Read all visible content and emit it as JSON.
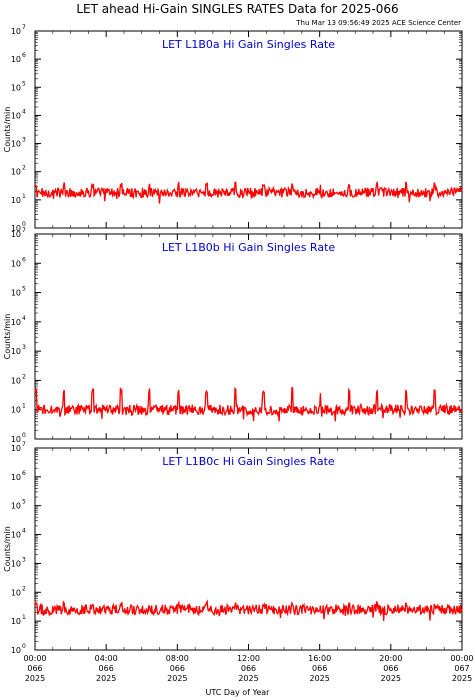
{
  "header": {
    "title": "LET ahead Hi-Gain SINGLES RATES Data for 2025-066",
    "timestamp": "Thu Mar 13 09:56:49 2025 ACE Science Center"
  },
  "chart_data": [
    {
      "type": "line",
      "title": "LET L1B0a Hi Gain Singles Rate",
      "xlabel": "UTC Day of Year",
      "ylabel": "Counts/min",
      "y_scale": "log",
      "ylim": [
        1,
        10000000
      ],
      "xlim": [
        "2025-066 00:00",
        "2025-067 00:00"
      ],
      "series_color": "#ff0000",
      "typical_value": 18,
      "spike_period_hours": 1.6,
      "spike_value": 35
    },
    {
      "type": "line",
      "title": "LET L1B0b Hi Gain Singles Rate",
      "xlabel": "UTC Day of Year",
      "ylabel": "Counts/min",
      "y_scale": "log",
      "ylim": [
        1,
        10000000
      ],
      "xlim": [
        "2025-066 00:00",
        "2025-067 00:00"
      ],
      "series_color": "#ff0000",
      "typical_value": 10,
      "spike_period_hours": 1.6,
      "spike_value": 45
    },
    {
      "type": "line",
      "title": "LET L1B0c Hi Gain Singles Rate",
      "xlabel": "UTC Day of Year",
      "ylabel": "Counts/min",
      "y_scale": "log",
      "ylim": [
        1,
        10000000
      ],
      "xlim": [
        "2025-066 00:00",
        "2025-067 00:00"
      ],
      "series_color": "#ff0000",
      "typical_value": 25,
      "spike_period_hours": 1.6,
      "spike_value": 40
    }
  ],
  "ytick_exponents": [
    0,
    1,
    2,
    3,
    4,
    5,
    6,
    7
  ],
  "xticks": [
    {
      "time": "00:00",
      "day": "066",
      "year": "2025"
    },
    {
      "time": "04:00",
      "day": "066",
      "year": "2025"
    },
    {
      "time": "08:00",
      "day": "066",
      "year": "2025"
    },
    {
      "time": "12:00",
      "day": "066",
      "year": "2025"
    },
    {
      "time": "16:00",
      "day": "066",
      "year": "2025"
    },
    {
      "time": "20:00",
      "day": "066",
      "year": "2025"
    },
    {
      "time": "00:00",
      "day": "067",
      "year": "2025"
    }
  ],
  "x_axis_label": "UTC Day of Year",
  "colors": {
    "title_text": "#0000cc",
    "series": "#ff0000",
    "axes": "#000000"
  }
}
